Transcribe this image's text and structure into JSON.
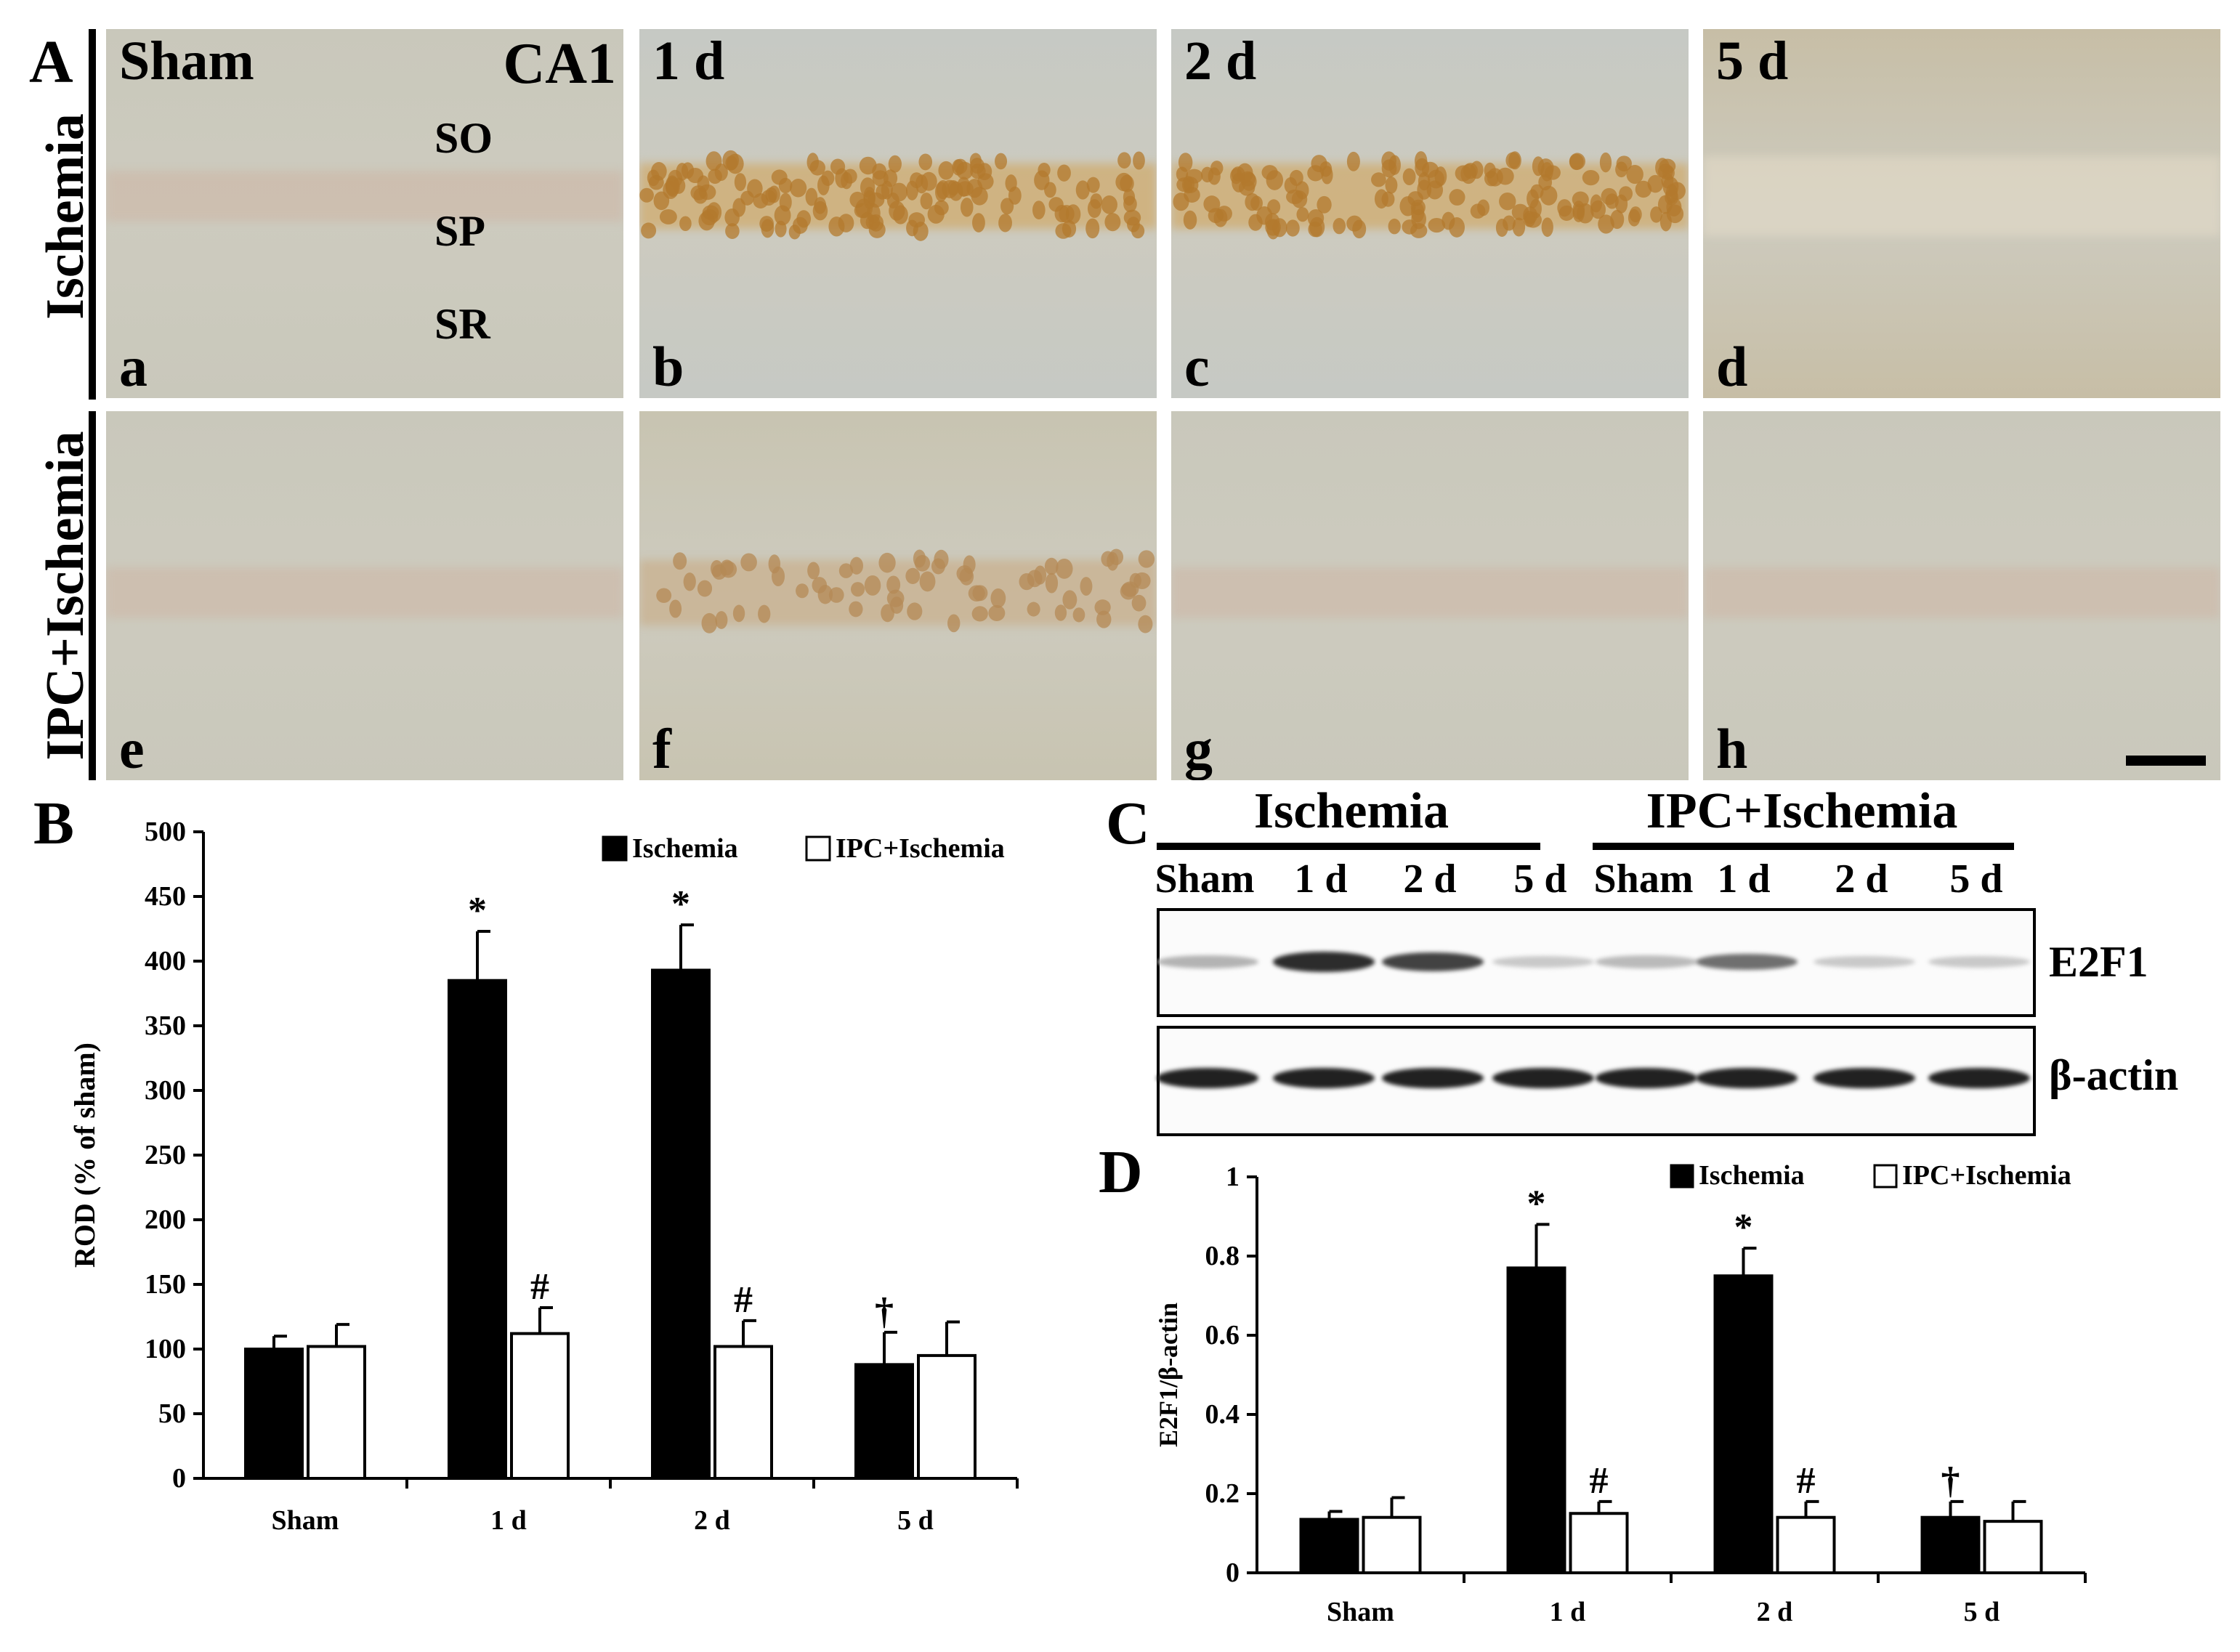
{
  "panels": {
    "A": {
      "letter": "A",
      "region": "CA1",
      "layers": [
        "SO",
        "SP",
        "SR"
      ],
      "row_labels": [
        "Ischemia",
        "IPC+Ischemia"
      ],
      "rows": [
        [
          {
            "title": "Sham",
            "letter": "a",
            "stain": "faint"
          },
          {
            "title": "1 d",
            "letter": "b",
            "stain": "strong"
          },
          {
            "title": "2 d",
            "letter": "c",
            "stain": "strong"
          },
          {
            "title": "5 d",
            "letter": "d",
            "stain": "degenerated"
          }
        ],
        [
          {
            "title": "",
            "letter": "e",
            "stain": "faint"
          },
          {
            "title": "",
            "letter": "f",
            "stain": "moderate"
          },
          {
            "title": "",
            "letter": "g",
            "stain": "faint"
          },
          {
            "title": "",
            "letter": "h",
            "stain": "faint"
          }
        ]
      ]
    },
    "B": {
      "letter": "B"
    },
    "C": {
      "letter": "C",
      "groups": [
        "Ischemia",
        "IPC+Ischemia"
      ],
      "lanes": [
        "Sham",
        "1 d",
        "2 d",
        "5 d",
        "Sham",
        "1 d",
        "2 d",
        "5 d"
      ],
      "blots": [
        {
          "label": "E2F1",
          "intensity": [
            0.25,
            0.85,
            0.75,
            0.15,
            0.22,
            0.55,
            0.15,
            0.15
          ]
        },
        {
          "label": "β-actin",
          "intensity": [
            0.9,
            0.9,
            0.9,
            0.9,
            0.9,
            0.9,
            0.9,
            0.9
          ]
        }
      ]
    },
    "D": {
      "letter": "D"
    }
  },
  "colors": {
    "ischemia_bar": "#000000",
    "ipc_bar": "#ffffff",
    "tissue_bg": "#c8c6b8",
    "stain_brown": "#b8823c"
  },
  "chart_data": [
    {
      "id": "B",
      "type": "bar",
      "categories": [
        "Sham",
        "1 d",
        "2 d",
        "5 d"
      ],
      "ylabel": "ROD (% of sham)",
      "ylim": [
        0,
        500
      ],
      "yticks": [
        0,
        50,
        100,
        150,
        200,
        250,
        300,
        350,
        400,
        450,
        500
      ],
      "legend_position": "top-right",
      "series": [
        {
          "name": "Ischemia",
          "color": "#000000",
          "values": [
            100,
            385,
            393,
            88
          ],
          "errors": [
            10,
            38,
            35,
            25
          ],
          "marks": [
            "",
            "*",
            "*",
            "†"
          ]
        },
        {
          "name": "IPC+Ischemia",
          "color": "#ffffff",
          "values": [
            102,
            112,
            102,
            95
          ],
          "errors": [
            17,
            20,
            20,
            26
          ],
          "marks": [
            "",
            "#",
            "#",
            ""
          ]
        }
      ]
    },
    {
      "id": "D",
      "type": "bar",
      "categories": [
        "Sham",
        "1 d",
        "2 d",
        "5 d"
      ],
      "ylabel": "E2F1/β-actin",
      "ylim": [
        0,
        1
      ],
      "yticks": [
        0,
        0.2,
        0.4,
        0.6,
        0.8,
        1
      ],
      "ytick_labels": [
        "0",
        "0.2",
        "0.4",
        "0.6",
        "0.8",
        "1"
      ],
      "legend_position": "top-right",
      "series": [
        {
          "name": "Ischemia",
          "color": "#000000",
          "values": [
            0.135,
            0.77,
            0.75,
            0.14
          ],
          "errors": [
            0.02,
            0.11,
            0.07,
            0.04
          ],
          "marks": [
            "",
            "*",
            "*",
            "†"
          ]
        },
        {
          "name": "IPC+Ischemia",
          "color": "#ffffff",
          "values": [
            0.14,
            0.15,
            0.14,
            0.13
          ],
          "errors": [
            0.05,
            0.03,
            0.04,
            0.05
          ],
          "marks": [
            "",
            "#",
            "#",
            ""
          ]
        }
      ]
    }
  ]
}
